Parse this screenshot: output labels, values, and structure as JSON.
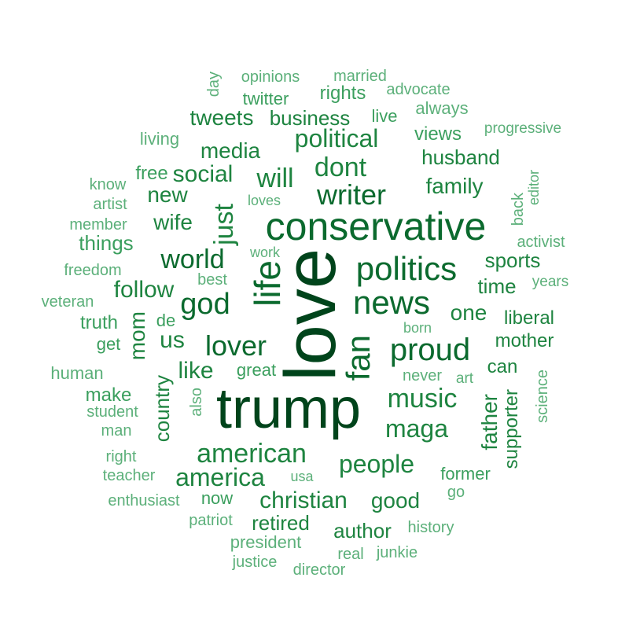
{
  "palette": [
    "#00441b",
    "#0b6a2e",
    "#1e8440",
    "#3b9f5e",
    "#5cb07a"
  ],
  "words": [
    {
      "text": "love",
      "tier": 0
    },
    {
      "text": "trump",
      "tier": 0
    },
    {
      "text": "conservative",
      "tier": 1
    },
    {
      "text": "life",
      "tier": 1
    },
    {
      "text": "news",
      "tier": 1
    },
    {
      "text": "fan",
      "tier": 1
    },
    {
      "text": "politics",
      "tier": 1
    },
    {
      "text": "proud",
      "tier": 1
    },
    {
      "text": "writer",
      "tier": 1
    },
    {
      "text": "world",
      "tier": 1
    },
    {
      "text": "god",
      "tier": 1
    },
    {
      "text": "lover",
      "tier": 1
    },
    {
      "text": "just",
      "tier": 2
    },
    {
      "text": "dont",
      "tier": 2
    },
    {
      "text": "will",
      "tier": 2
    },
    {
      "text": "political",
      "tier": 2
    },
    {
      "text": "music",
      "tier": 2
    },
    {
      "text": "maga",
      "tier": 2
    },
    {
      "text": "american",
      "tier": 2
    },
    {
      "text": "people",
      "tier": 2
    },
    {
      "text": "america",
      "tier": 2
    },
    {
      "text": "christian",
      "tier": 2
    },
    {
      "text": "media",
      "tier": 2
    },
    {
      "text": "family",
      "tier": 2
    },
    {
      "text": "husband",
      "tier": 2
    },
    {
      "text": "social",
      "tier": 2
    },
    {
      "text": "one",
      "tier": 2
    },
    {
      "text": "us",
      "tier": 2
    },
    {
      "text": "follow",
      "tier": 2
    },
    {
      "text": "good",
      "tier": 2
    },
    {
      "text": "tweets",
      "tier": 2
    },
    {
      "text": "business",
      "tier": 2
    },
    {
      "text": "mom",
      "tier": 2
    },
    {
      "text": "country",
      "tier": 2
    },
    {
      "text": "father",
      "tier": 2
    },
    {
      "text": "sports",
      "tier": 2
    },
    {
      "text": "time",
      "tier": 2
    },
    {
      "text": "retired",
      "tier": 2
    },
    {
      "text": "author",
      "tier": 2
    },
    {
      "text": "like",
      "tier": 2
    },
    {
      "text": "wife",
      "tier": 2
    },
    {
      "text": "new",
      "tier": 2
    },
    {
      "text": "supporter",
      "tier": 2
    },
    {
      "text": "mother",
      "tier": 2
    },
    {
      "text": "liberal",
      "tier": 2
    },
    {
      "text": "can",
      "tier": 2
    },
    {
      "text": "things",
      "tier": 3
    },
    {
      "text": "make",
      "tier": 3
    },
    {
      "text": "views",
      "tier": 3
    },
    {
      "text": "rights",
      "tier": 3
    },
    {
      "text": "free",
      "tier": 3
    },
    {
      "text": "truth",
      "tier": 3
    },
    {
      "text": "now",
      "tier": 3
    },
    {
      "text": "former",
      "tier": 3
    },
    {
      "text": "twitter",
      "tier": 3
    },
    {
      "text": "live",
      "tier": 3
    },
    {
      "text": "great",
      "tier": 3
    },
    {
      "text": "get",
      "tier": 3
    },
    {
      "text": "de",
      "tier": 3
    },
    {
      "text": "living",
      "tier": 4
    },
    {
      "text": "always",
      "tier": 4
    },
    {
      "text": "opinions",
      "tier": 4
    },
    {
      "text": "married",
      "tier": 4
    },
    {
      "text": "advocate",
      "tier": 4
    },
    {
      "text": "day",
      "tier": 4
    },
    {
      "text": "progressive",
      "tier": 4
    },
    {
      "text": "know",
      "tier": 4
    },
    {
      "text": "artist",
      "tier": 4
    },
    {
      "text": "loves",
      "tier": 4
    },
    {
      "text": "member",
      "tier": 4
    },
    {
      "text": "work",
      "tier": 4
    },
    {
      "text": "back",
      "tier": 4
    },
    {
      "text": "editor",
      "tier": 4
    },
    {
      "text": "activist",
      "tier": 4
    },
    {
      "text": "freedom",
      "tier": 4
    },
    {
      "text": "best",
      "tier": 4
    },
    {
      "text": "years",
      "tier": 4
    },
    {
      "text": "veteran",
      "tier": 4
    },
    {
      "text": "born",
      "tier": 4
    },
    {
      "text": "human",
      "tier": 4
    },
    {
      "text": "never",
      "tier": 4
    },
    {
      "text": "art",
      "tier": 4
    },
    {
      "text": "science",
      "tier": 4
    },
    {
      "text": "also",
      "tier": 4
    },
    {
      "text": "student",
      "tier": 4
    },
    {
      "text": "man",
      "tier": 4
    },
    {
      "text": "right",
      "tier": 4
    },
    {
      "text": "teacher",
      "tier": 4
    },
    {
      "text": "usa",
      "tier": 4
    },
    {
      "text": "go",
      "tier": 4
    },
    {
      "text": "enthusiast",
      "tier": 4
    },
    {
      "text": "patriot",
      "tier": 4
    },
    {
      "text": "history",
      "tier": 4
    },
    {
      "text": "president",
      "tier": 4
    },
    {
      "text": "real",
      "tier": 4
    },
    {
      "text": "junkie",
      "tier": 4
    },
    {
      "text": "justice",
      "tier": 4
    },
    {
      "text": "director",
      "tier": 4
    }
  ]
}
